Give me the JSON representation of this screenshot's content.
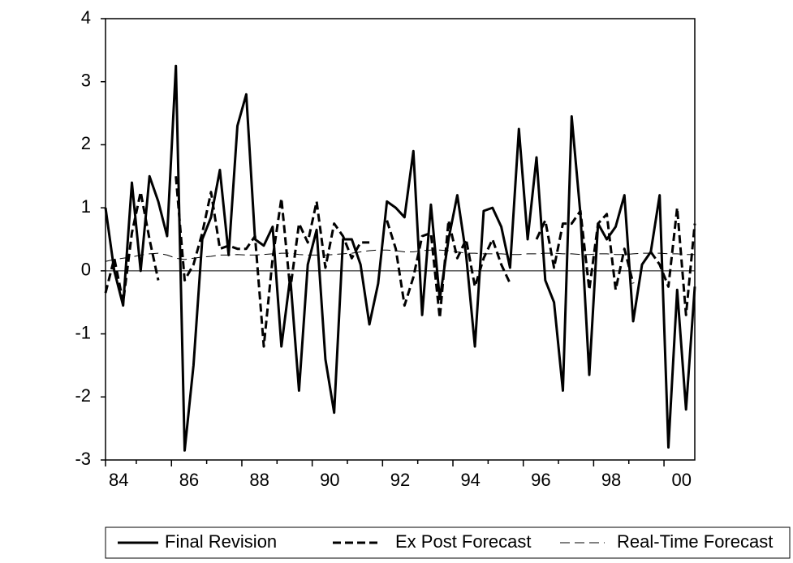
{
  "chart_data": {
    "type": "line",
    "categories": [
      "84",
      null,
      null,
      null,
      null,
      null,
      null,
      null,
      "86",
      null,
      null,
      null,
      null,
      null,
      null,
      null,
      "88",
      null,
      null,
      null,
      null,
      null,
      null,
      null,
      "90",
      null,
      null,
      null,
      null,
      null,
      null,
      null,
      "92",
      null,
      null,
      null,
      null,
      null,
      null,
      null,
      "94",
      null,
      null,
      null,
      null,
      null,
      null,
      null,
      "96",
      null,
      null,
      null,
      null,
      null,
      null,
      null,
      "98",
      null,
      null,
      null,
      null,
      null,
      null,
      null,
      "00",
      null,
      null,
      null
    ],
    "ylim": [
      -3,
      4
    ],
    "yticks": [
      -3,
      -2,
      -1,
      0,
      1,
      2,
      3,
      4
    ],
    "series": [
      {
        "name": "Final Revision",
        "color": "#000000",
        "style": "solid",
        "values": [
          1.0,
          0.0,
          -0.55,
          1.4,
          0.0,
          1.5,
          1.1,
          0.55,
          3.25,
          -2.85,
          -1.5,
          0.5,
          0.85,
          1.6,
          0.25,
          2.3,
          2.8,
          0.5,
          0.4,
          0.7,
          -1.2,
          -0.1,
          -1.9,
          0.1,
          0.65,
          -1.4,
          -2.25,
          0.5,
          0.5,
          0.1,
          -0.85,
          -0.2,
          1.1,
          1.0,
          0.85,
          1.9,
          -0.7,
          1.05,
          -0.45,
          0.5,
          1.2,
          0.25,
          -1.2,
          0.95,
          1.0,
          0.7,
          0.05,
          2.25,
          0.5,
          1.8,
          -0.15,
          -0.5,
          -1.9,
          2.45,
          0.9,
          -1.65,
          0.75,
          0.5,
          0.7,
          1.2,
          -0.8,
          0.1,
          0.3,
          1.2,
          -2.8,
          -0.3,
          -2.2,
          -0.25
        ]
      },
      {
        "name": "Ex Post Forecast",
        "color": "#000000",
        "style": "dash",
        "values": [
          -0.35,
          0.2,
          -0.5,
          0.6,
          1.25,
          0.5,
          -0.15,
          null,
          1.5,
          -0.15,
          0.1,
          0.6,
          1.25,
          0.35,
          0.4,
          0.35,
          0.35,
          0.55,
          -1.2,
          0.2,
          1.15,
          -0.3,
          0.75,
          0.45,
          1.1,
          0.05,
          0.75,
          0.55,
          0.2,
          0.45,
          0.45,
          null,
          0.8,
          0.35,
          -0.55,
          -0.1,
          0.55,
          0.6,
          -0.75,
          0.8,
          0.2,
          0.5,
          -0.25,
          0.2,
          0.5,
          0.1,
          -0.2,
          null,
          null,
          0.5,
          0.8,
          0.05,
          0.75,
          0.75,
          0.95,
          -0.3,
          0.75,
          0.9,
          -0.3,
          0.35,
          -0.2,
          null,
          0.3,
          0.1,
          -0.25,
          1.0,
          -0.7,
          0.75
        ]
      },
      {
        "name": "Real-Time Forecast",
        "color": "#000000",
        "style": "longdash",
        "values": [
          0.15,
          0.18,
          0.2,
          0.22,
          0.25,
          0.27,
          0.28,
          0.25,
          0.2,
          0.18,
          0.2,
          0.22,
          0.23,
          0.25,
          0.25,
          0.26,
          0.25,
          0.25,
          0.26,
          0.27,
          0.28,
          0.28,
          0.26,
          0.25,
          0.25,
          0.25,
          0.26,
          0.27,
          0.28,
          0.3,
          0.32,
          0.33,
          0.33,
          0.32,
          0.3,
          0.3,
          0.32,
          0.33,
          0.33,
          0.32,
          0.3,
          0.28,
          0.28,
          0.27,
          0.27,
          0.27,
          0.26,
          0.26,
          0.27,
          0.27,
          0.28,
          0.28,
          0.27,
          0.27,
          0.26,
          0.26,
          0.27,
          0.27,
          0.26,
          0.26,
          0.27,
          0.28,
          0.28,
          0.28,
          0.27,
          0.27,
          0.26,
          0.26
        ]
      }
    ]
  }
}
